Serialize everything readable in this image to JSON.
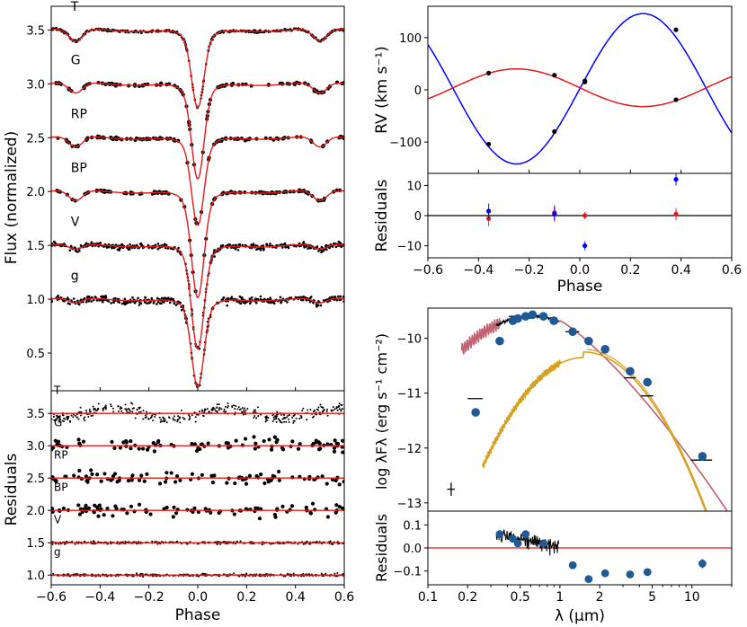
{
  "chart_data": [
    {
      "id": "lc",
      "type": "line",
      "title": "",
      "xlabel": "",
      "ylabel": "Flux (normalized)",
      "xlim": [
        -0.6,
        0.6
      ],
      "ylim": [
        0.15,
        3.72
      ],
      "yticks": [
        "0.5",
        "1.0",
        "1.5",
        "2.0",
        "2.5",
        "3.0",
        "3.5"
      ],
      "yticks_values": [
        0.5,
        1.0,
        1.5,
        2.0,
        2.5,
        3.0,
        3.5
      ],
      "model_color": "#e31a1c",
      "data_color": "#000000",
      "series": [
        {
          "name": "T",
          "offset": 3.5,
          "primary_depth": 0.64,
          "secondary_depth": 0.12,
          "style": "dense",
          "noise": 0.012
        },
        {
          "name": "G",
          "offset": 3.0,
          "primary_depth": 0.78,
          "secondary_depth": 0.1,
          "style": "points",
          "noise": 0.01
        },
        {
          "name": "RP",
          "offset": 2.5,
          "primary_depth": 0.72,
          "secondary_depth": 0.1,
          "style": "points",
          "noise": 0.01
        },
        {
          "name": "BP",
          "offset": 2.0,
          "primary_depth": 0.87,
          "secondary_depth": 0.1,
          "style": "points",
          "noise": 0.01
        },
        {
          "name": "V",
          "offset": 1.5,
          "primary_depth": 0.85,
          "secondary_depth": 0.05,
          "style": "dense",
          "noise": 0.025
        },
        {
          "name": "g",
          "offset": 1.0,
          "primary_depth": 0.72,
          "secondary_depth": 0.05,
          "style": "dense",
          "noise": 0.03
        }
      ]
    },
    {
      "id": "lc_resid",
      "type": "scatter",
      "xlabel": "Phase",
      "ylabel": "Residuals",
      "xlim": [
        -0.6,
        0.6
      ],
      "ylim": [
        0.85,
        3.85
      ],
      "xticks": [
        "−0.6",
        "−0.4",
        "−0.2",
        "0.0",
        "0.2",
        "0.4",
        "0.6"
      ],
      "xticks_values": [
        -0.6,
        -0.4,
        -0.2,
        0.0,
        0.2,
        0.4,
        0.6
      ],
      "yticks": [
        "1.0",
        "1.5",
        "2.0",
        "2.5",
        "3.0",
        "3.5"
      ],
      "yticks_values": [
        1.0,
        1.5,
        2.0,
        2.5,
        3.0,
        3.5
      ],
      "series": [
        {
          "name": "T",
          "offset": 3.5
        },
        {
          "name": "G",
          "offset": 3.0
        },
        {
          "name": "RP",
          "offset": 2.5
        },
        {
          "name": "BP",
          "offset": 2.0
        },
        {
          "name": "V",
          "offset": 1.5
        },
        {
          "name": "g",
          "offset": 1.0
        }
      ]
    },
    {
      "id": "rv",
      "type": "line",
      "ylabel": "RV (km s⁻¹)",
      "xlim": [
        -0.6,
        0.6
      ],
      "ylim": [
        -160,
        160
      ],
      "yticks": [
        "−100",
        "0",
        "100"
      ],
      "yticks_values": [
        -100,
        0,
        100
      ],
      "series": [
        {
          "color": "#0000ff",
          "gamma": 2,
          "K": 144,
          "points": [
            [
              -0.36,
              -104
            ],
            [
              -0.1,
              -80
            ],
            [
              0.02,
              17
            ],
            [
              0.38,
              115
            ]
          ]
        },
        {
          "color": "#e31a1c",
          "gamma": 4,
          "K": -36,
          "points": [
            [
              -0.36,
              32
            ],
            [
              -0.1,
              28
            ],
            [
              0.02,
              15
            ],
            [
              0.38,
              -19
            ]
          ]
        }
      ]
    },
    {
      "id": "rv_resid",
      "type": "scatter",
      "xlabel": "Phase",
      "ylabel": "Residuals",
      "xlim": [
        -0.6,
        0.6
      ],
      "ylim": [
        -14,
        14
      ],
      "xticks": [
        "−0.6",
        "−0.4",
        "−0.2",
        "0.0",
        "0.2",
        "0.4",
        "0.6"
      ],
      "xticks_values": [
        -0.6,
        -0.4,
        -0.2,
        0.0,
        0.2,
        0.4,
        0.6
      ],
      "yticks": [
        "−10",
        "0",
        "10"
      ],
      "yticks_values": [
        -10,
        0,
        10
      ],
      "series": [
        {
          "color": "#e31a1c",
          "points": [
            [
              -0.36,
              -1,
              2.5
            ],
            [
              -0.1,
              1,
              2.5
            ],
            [
              0.02,
              0,
              1.2
            ],
            [
              0.38,
              0.5,
              2
            ]
          ]
        },
        {
          "color": "#0000ff",
          "points": [
            [
              -0.36,
              1.5,
              2.5
            ],
            [
              -0.1,
              0.5,
              2.5
            ],
            [
              0.02,
              -10,
              1.5
            ],
            [
              0.38,
              12,
              2
            ]
          ]
        }
      ]
    },
    {
      "id": "sed",
      "type": "line",
      "ylabel": "log λFλ (erg s⁻¹ cm⁻²)",
      "xscale": "log",
      "xlim": [
        0.1,
        20
      ],
      "ylim": [
        -13.15,
        -9.45
      ],
      "yticks": [
        "−13",
        "−12",
        "−11",
        "−10"
      ],
      "yticks_values": [
        -13,
        -12,
        -11,
        -10
      ],
      "model_color": "#c06070",
      "component_color": "#d4a020",
      "phot": [
        [
          0.23,
          -11.35
        ],
        [
          0.35,
          -10.05
        ],
        [
          0.44,
          -9.68
        ],
        [
          0.48,
          -9.64
        ],
        [
          0.55,
          -9.6
        ],
        [
          0.62,
          -9.57
        ],
        [
          0.75,
          -9.6
        ],
        [
          0.9,
          -9.68
        ],
        [
          1.25,
          -9.88
        ],
        [
          1.65,
          -10.05
        ],
        [
          2.2,
          -10.2
        ],
        [
          3.4,
          -10.6
        ],
        [
          4.6,
          -10.8
        ],
        [
          12,
          -12.15
        ]
      ],
      "bars": [
        [
          0.15,
          -12.75,
          0.01,
          0.12
        ],
        [
          0.23,
          -11.1,
          0.03,
          0
        ],
        [
          0.48,
          -9.6,
          0.07,
          0
        ],
        [
          1.25,
          -9.88,
          0.15,
          0
        ],
        [
          3.4,
          -10.72,
          0.35,
          0
        ],
        [
          4.6,
          -11.05,
          0.5,
          0
        ],
        [
          12,
          -12.22,
          2.2,
          0
        ]
      ]
    },
    {
      "id": "sed_resid",
      "type": "scatter",
      "xlabel": "λ (μm)",
      "ylabel": "Residuals",
      "xscale": "log",
      "xlim": [
        0.1,
        20
      ],
      "ylim": [
        -0.16,
        0.16
      ],
      "xticks": [
        "0.1",
        "0.2",
        "0.5",
        "1",
        "2",
        "5",
        "10"
      ],
      "xticks_values": [
        0.1,
        0.2,
        0.5,
        1,
        2,
        5,
        10
      ],
      "yticks": [
        "−0.1",
        "0.0",
        "0.1"
      ],
      "yticks_values": [
        -0.1,
        0.0,
        0.1
      ],
      "points": [
        [
          0.35,
          0.06
        ],
        [
          0.44,
          0.04
        ],
        [
          0.48,
          0.02
        ],
        [
          0.55,
          0.06
        ],
        [
          0.75,
          0.02
        ],
        [
          1.25,
          -0.075
        ],
        [
          1.65,
          -0.135
        ],
        [
          2.2,
          -0.11
        ],
        [
          3.4,
          -0.115
        ],
        [
          4.6,
          -0.105
        ],
        [
          12,
          -0.068
        ]
      ]
    }
  ]
}
